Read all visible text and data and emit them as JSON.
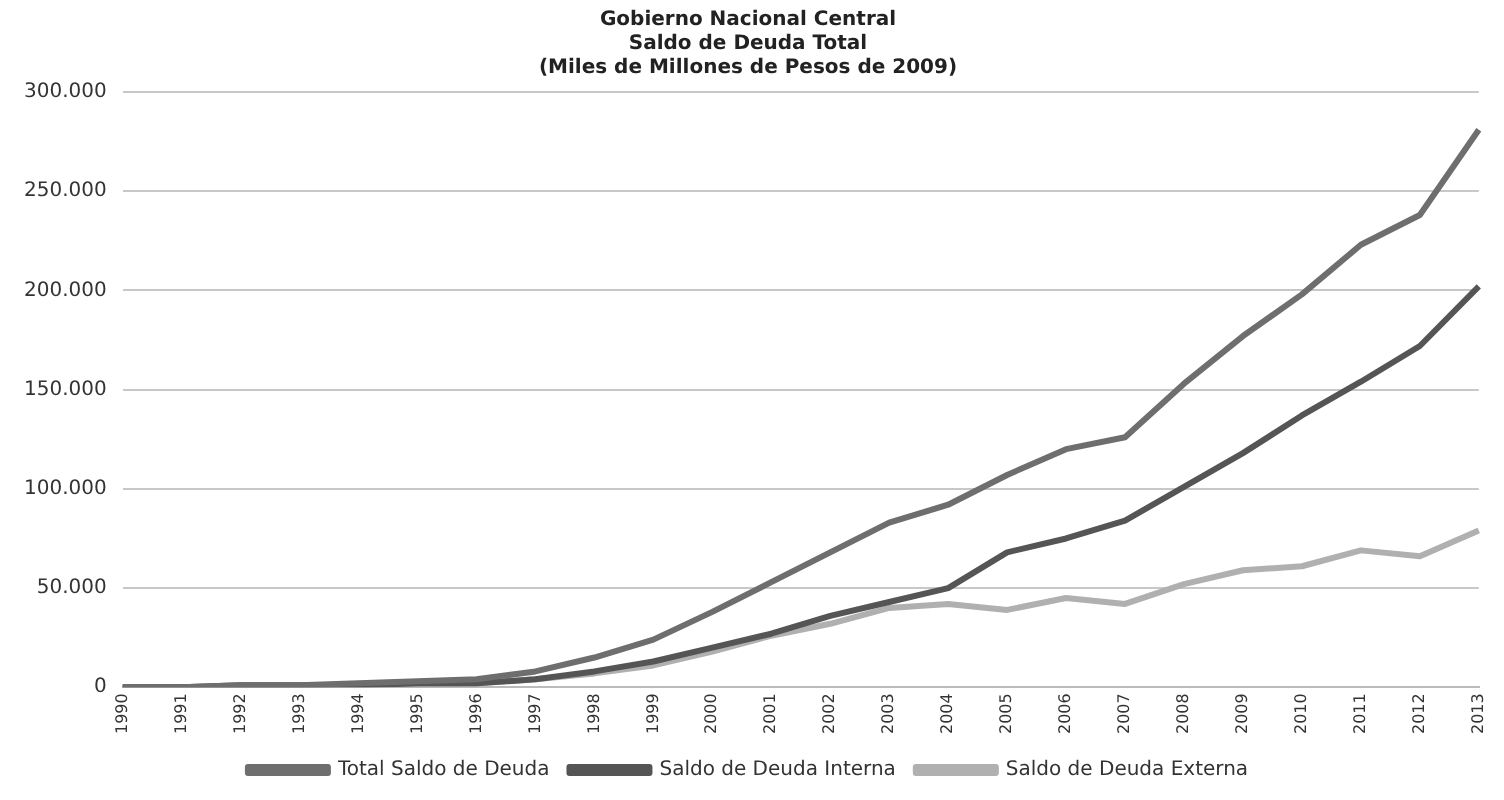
{
  "chart_data": {
    "type": "line",
    "title": [
      "Gobierno Nacional Central",
      "Saldo de Deuda Total",
      "(Miles de Millones de Pesos de 2009)"
    ],
    "categories": [
      "1990",
      "1991",
      "1992",
      "1993",
      "1994",
      "1995",
      "1996",
      "1997",
      "1998",
      "1999",
      "2000",
      "2001",
      "2002",
      "2003",
      "2004",
      "2005",
      "2006",
      "2007",
      "2008",
      "2009",
      "2010",
      "2011",
      "2012",
      "2013"
    ],
    "series": [
      {
        "name": "Total Saldo de Deuda",
        "color": "#6e6e6e",
        "values": [
          0,
          0,
          1000,
          1000,
          2000,
          3000,
          4000,
          8000,
          15000,
          24000,
          38000,
          53000,
          68000,
          83000,
          92000,
          107000,
          120000,
          126000,
          153000,
          177000,
          198000,
          223000,
          238000,
          281000
        ]
      },
      {
        "name": "Saldo de Deuda Interna",
        "color": "#555555",
        "values": [
          0,
          0,
          1000,
          1000,
          1000,
          2000,
          2000,
          4000,
          8000,
          13000,
          20000,
          27000,
          36000,
          43000,
          50000,
          68000,
          75000,
          84000,
          101000,
          118000,
          137000,
          154000,
          172000,
          202000
        ]
      },
      {
        "name": "Saldo de Deuda Externa",
        "color": "#b0b0b0",
        "values": [
          0,
          0,
          0,
          0,
          1000,
          1000,
          2000,
          4000,
          7000,
          11000,
          18000,
          26000,
          32000,
          40000,
          42000,
          39000,
          45000,
          42000,
          52000,
          59000,
          61000,
          69000,
          66000,
          79000
        ]
      }
    ],
    "ylim": [
      0,
      300000
    ],
    "yticks": [
      {
        "value": 0,
        "label": "0"
      },
      {
        "value": 50000,
        "label": "50.000"
      },
      {
        "value": 100000,
        "label": "100.000"
      },
      {
        "value": 150000,
        "label": "150.000"
      },
      {
        "value": 200000,
        "label": "200.000"
      },
      {
        "value": 250000,
        "label": "250.000"
      },
      {
        "value": 300000,
        "label": "300.000"
      }
    ],
    "grid": "y",
    "legend": "bottom",
    "marker": "none",
    "line_style": "solid"
  }
}
